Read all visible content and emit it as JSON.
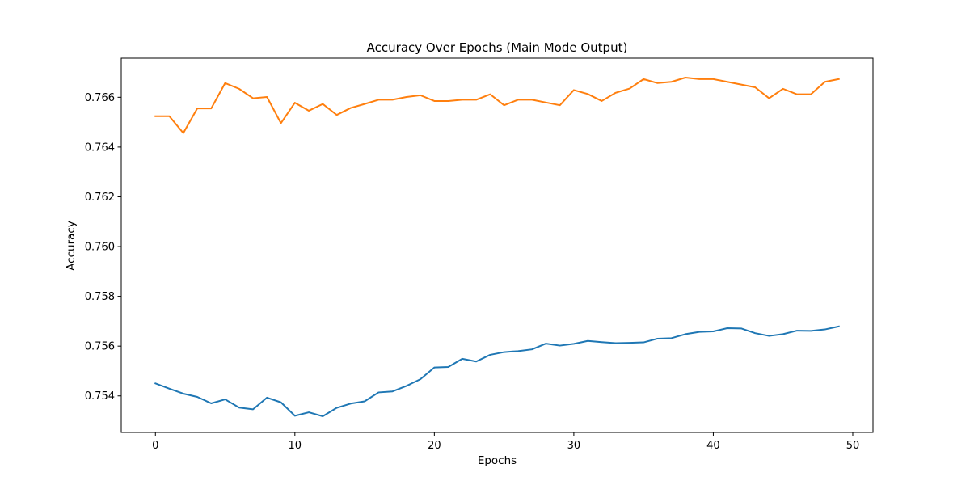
{
  "chart_data": {
    "type": "line",
    "title": "Accuracy Over Epochs (Main Mode Output)",
    "xlabel": "Epochs",
    "ylabel": "Accuracy",
    "xlim": [
      -2.45,
      51.45
    ],
    "ylim": [
      0.75253,
      0.76757
    ],
    "xticks": [
      0,
      10,
      20,
      30,
      40,
      50
    ],
    "yticks": [
      0.754,
      0.756,
      0.758,
      0.76,
      0.762,
      0.764,
      0.766
    ],
    "ytick_labels": [
      "0.754",
      "0.756",
      "0.758",
      "0.760",
      "0.762",
      "0.764",
      "0.766"
    ],
    "grid": false,
    "legend": "none",
    "x": [
      0,
      1,
      2,
      3,
      4,
      5,
      6,
      7,
      8,
      9,
      10,
      11,
      12,
      13,
      14,
      15,
      16,
      17,
      18,
      19,
      20,
      21,
      22,
      23,
      24,
      25,
      26,
      27,
      28,
      29,
      30,
      31,
      32,
      33,
      34,
      35,
      36,
      37,
      38,
      39,
      40,
      41,
      42,
      43,
      44,
      45,
      46,
      47,
      48,
      49
    ],
    "series": [
      {
        "color": "#1f77b4",
        "values": [
          0.7545,
          0.75429,
          0.75409,
          0.75396,
          0.7537,
          0.75386,
          0.75353,
          0.75346,
          0.75393,
          0.75374,
          0.7532,
          0.75334,
          0.75318,
          0.75352,
          0.75369,
          0.75378,
          0.75414,
          0.75418,
          0.7544,
          0.75467,
          0.75514,
          0.75516,
          0.75549,
          0.75538,
          0.75565,
          0.75576,
          0.7558,
          0.75587,
          0.7561,
          0.75602,
          0.75609,
          0.75621,
          0.75616,
          0.75612,
          0.75613,
          0.75615,
          0.7563,
          0.75632,
          0.75648,
          0.75657,
          0.75659,
          0.75672,
          0.75671,
          0.75652,
          0.75641,
          0.75648,
          0.75662,
          0.75661,
          0.75667,
          0.75679
        ]
      },
      {
        "color": "#ff7f0e",
        "values": [
          0.76524,
          0.76524,
          0.76456,
          0.76555,
          0.76555,
          0.76657,
          0.76634,
          0.76596,
          0.76601,
          0.76496,
          0.76578,
          0.76546,
          0.76573,
          0.76529,
          0.76557,
          0.76573,
          0.7659,
          0.7659,
          0.76601,
          0.76608,
          0.76585,
          0.76585,
          0.7659,
          0.7659,
          0.76612,
          0.76568,
          0.7659,
          0.7659,
          0.76579,
          0.76568,
          0.76629,
          0.76613,
          0.76585,
          0.76618,
          0.76635,
          0.76673,
          0.76657,
          0.76662,
          0.76679,
          0.76673,
          0.76673,
          0.76662,
          0.76651,
          0.7664,
          0.76596,
          0.76634,
          0.76612,
          0.76612,
          0.76662,
          0.76673
        ]
      }
    ]
  }
}
